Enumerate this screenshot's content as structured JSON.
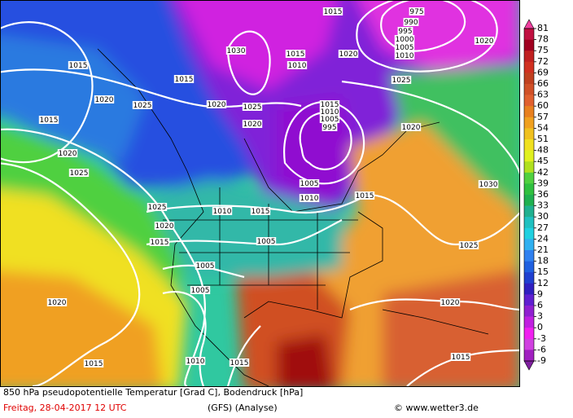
{
  "isobar_labels": [
    "1015",
    "975",
    "990",
    "995",
    "1000",
    "1005",
    "1010",
    "1020",
    "1030",
    "1015",
    "1010",
    "1020",
    "1015",
    "1015",
    "1025",
    "1020",
    "1025",
    "1020",
    "1025",
    "1015",
    "1010",
    "1005",
    "995",
    "1020",
    "1020",
    "1015",
    "1020",
    "1025",
    "1005",
    "1010",
    "1015",
    "1030",
    "1025",
    "1010",
    "1015",
    "1020",
    "1015",
    "1005",
    "1025",
    "1005",
    "1005",
    "1020",
    "1020",
    "1015",
    "1010",
    "1015",
    "1015"
  ],
  "color_scale": {
    "ticks": [
      81,
      78,
      75,
      72,
      69,
      66,
      63,
      60,
      57,
      54,
      51,
      48,
      45,
      42,
      39,
      36,
      33,
      30,
      27,
      24,
      21,
      18,
      15,
      12,
      9,
      6,
      3,
      0,
      -3,
      -6,
      -9
    ],
    "band_colors": [
      "#c01040",
      "#a00020",
      "#c02020",
      "#d03020",
      "#c04020",
      "#d05028",
      "#e06030",
      "#e88020",
      "#f0a020",
      "#f0c020",
      "#f0e020",
      "#e0f020",
      "#b0e020",
      "#50d040",
      "#30c040",
      "#20b050",
      "#20b090",
      "#20c0c0",
      "#20d0e0",
      "#30b0f0",
      "#3080f0",
      "#2060e0",
      "#2040d0",
      "#3020c0",
      "#6020d0",
      "#9020d0",
      "#c020e0",
      "#f020f0",
      "#d040e0",
      "#a020c0"
    ],
    "top_arrow_color": "#f040a0",
    "bottom_arrow_color": "#8020a0"
  },
  "footer": {
    "title": "850 hPa pseudopotentielle Temperatur [Grad C], Bodendruck [hPa]",
    "date": "Freitag, 28-04-2017  12 UTC",
    "model": "(GFS)  (Analyse)",
    "source": "© www.wetter3.de"
  }
}
